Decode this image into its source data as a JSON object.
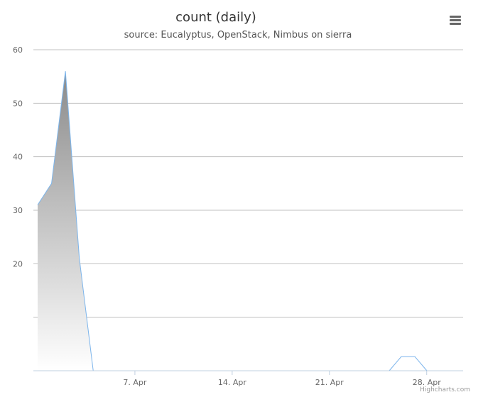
{
  "chart_data": {
    "type": "area",
    "title": "count (daily)",
    "subtitle": "source: Eucalyptus, OpenStack, Nimbus on sierra",
    "xlabel": "",
    "ylabel": "",
    "x_start": "2014-03-31",
    "x_end": "2014-04-30",
    "ylim": [
      0,
      60
    ],
    "y_ticks": [
      20,
      30,
      40,
      50,
      60
    ],
    "x_ticks": [
      {
        "date": "2014-04-07",
        "label": "7. Apr"
      },
      {
        "date": "2014-04-14",
        "label": "14. Apr"
      },
      {
        "date": "2014-04-21",
        "label": "21. Apr"
      },
      {
        "date": "2014-04-28",
        "label": "28. Apr"
      }
    ],
    "grid": true,
    "series": [
      {
        "color": "#7cb5ec",
        "points": [
          {
            "x": "2014-03-31",
            "y": 31
          },
          {
            "x": "2014-04-01",
            "y": 35
          },
          {
            "x": "2014-04-02",
            "y": 56
          },
          {
            "x": "2014-04-03",
            "y": 21
          },
          {
            "x": "2014-04-04",
            "y": 0
          },
          {
            "x": "2014-04-05",
            "y": 0
          },
          {
            "x": "2014-04-06",
            "y": 0
          },
          {
            "x": "2014-04-07",
            "y": 0
          },
          {
            "x": "2014-04-08",
            "y": 0
          },
          {
            "x": "2014-04-09",
            "y": 0
          },
          {
            "x": "2014-04-10",
            "y": 0
          },
          {
            "x": "2014-04-11",
            "y": 0
          },
          {
            "x": "2014-04-12",
            "y": 0
          },
          {
            "x": "2014-04-13",
            "y": 0
          },
          {
            "x": "2014-04-14",
            "y": 0
          },
          {
            "x": "2014-04-15",
            "y": 0
          },
          {
            "x": "2014-04-16",
            "y": 0
          },
          {
            "x": "2014-04-17",
            "y": 0
          },
          {
            "x": "2014-04-18",
            "y": 0
          },
          {
            "x": "2014-04-19",
            "y": 0
          },
          {
            "x": "2014-04-20",
            "y": 0
          },
          {
            "x": "2014-04-21",
            "y": 0
          },
          {
            "x": "2014-04-22",
            "y": 0
          },
          {
            "x": "2014-04-23",
            "y": 0
          },
          {
            "x": "2014-04-24",
            "y": 0
          },
          {
            "x": "2014-04-25",
            "y": 0
          },
          {
            "x": "2014-04-26",
            "y": 0
          },
          {
            "x": "2014-04-27",
            "y": 0
          },
          {
            "x": "2014-04-28",
            "y": 0
          }
        ]
      }
    ]
  },
  "credits": "Highcharts.com",
  "menu": {
    "icon": "hamburger-menu-icon"
  }
}
